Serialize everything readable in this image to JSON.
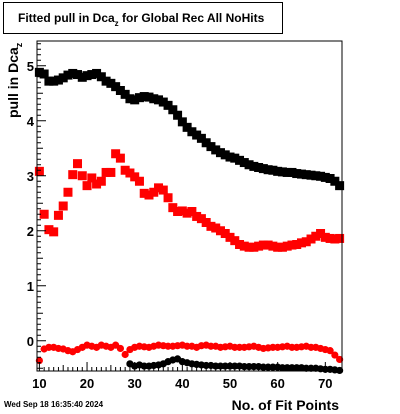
{
  "title": {
    "main": "Fitted pull in Dca",
    "sub": "z",
    "rest": " for Global Rec All NoHits"
  },
  "footer": {
    "date": "Wed Sep 18 16:35:40 2024"
  },
  "colors": {
    "black_series": "#000000",
    "red_series": "#ff0000"
  },
  "chart_data": {
    "type": "scatter",
    "xlabel": "No. of Fit Points",
    "ylabel": "pull in Dca",
    "ylabel_sub": "z",
    "xlim": [
      9.5,
      73.5
    ],
    "ylim": [
      -0.55,
      5.45
    ],
    "xticks": [
      10,
      20,
      30,
      40,
      50,
      60,
      70
    ],
    "yticks": [
      0,
      1,
      2,
      3,
      4,
      5
    ],
    "grid": false,
    "legend": "none",
    "series": [
      {
        "marker": "square",
        "color": "#000000",
        "x": [
          10,
          11,
          12,
          13,
          14,
          15,
          16,
          17,
          18,
          19,
          20,
          21,
          22,
          23,
          24,
          25,
          26,
          27,
          28,
          29,
          30,
          31,
          32,
          33,
          34,
          35,
          36,
          37,
          38,
          39,
          40,
          41,
          42,
          43,
          44,
          45,
          46,
          47,
          48,
          49,
          50,
          51,
          52,
          53,
          54,
          55,
          56,
          57,
          58,
          59,
          60,
          61,
          62,
          63,
          64,
          65,
          66,
          67,
          68,
          69,
          70,
          71,
          72,
          73
        ],
        "y": [
          4.88,
          4.85,
          4.72,
          4.72,
          4.74,
          4.78,
          4.83,
          4.86,
          4.84,
          4.79,
          4.82,
          4.84,
          4.86,
          4.8,
          4.72,
          4.68,
          4.62,
          4.55,
          4.48,
          4.4,
          4.38,
          4.42,
          4.44,
          4.43,
          4.4,
          4.38,
          4.34,
          4.28,
          4.2,
          4.1,
          3.98,
          3.88,
          3.8,
          3.74,
          3.68,
          3.6,
          3.53,
          3.47,
          3.42,
          3.38,
          3.34,
          3.32,
          3.28,
          3.24,
          3.2,
          3.17,
          3.15,
          3.13,
          3.11,
          3.1,
          3.08,
          3.07,
          3.06,
          3.06,
          3.04,
          3.03,
          3.02,
          3.01,
          3.0,
          2.99,
          2.97,
          2.95,
          2.9,
          2.82
        ]
      },
      {
        "marker": "square",
        "color": "#ff0000",
        "x": [
          10,
          11,
          12,
          13,
          14,
          15,
          16,
          17,
          18,
          19,
          20,
          21,
          22,
          23,
          24,
          25,
          26,
          27,
          28,
          29,
          30,
          31,
          32,
          33,
          34,
          35,
          36,
          37,
          38,
          39,
          40,
          41,
          42,
          43,
          44,
          45,
          46,
          47,
          48,
          49,
          50,
          51,
          52,
          53,
          54,
          55,
          56,
          57,
          58,
          59,
          60,
          61,
          62,
          63,
          64,
          65,
          66,
          67,
          68,
          69,
          70,
          71,
          72,
          73
        ],
        "y": [
          3.08,
          2.3,
          2.02,
          1.98,
          2.28,
          2.45,
          2.7,
          3.02,
          3.22,
          3.0,
          2.82,
          2.96,
          2.85,
          2.9,
          3.06,
          3.06,
          3.4,
          3.32,
          3.1,
          3.05,
          2.98,
          2.9,
          2.68,
          2.65,
          2.7,
          2.78,
          2.74,
          2.6,
          2.42,
          2.35,
          2.36,
          2.32,
          2.35,
          2.26,
          2.22,
          2.15,
          2.08,
          2.05,
          2.0,
          1.95,
          1.88,
          1.82,
          1.75,
          1.72,
          1.7,
          1.7,
          1.72,
          1.74,
          1.74,
          1.72,
          1.7,
          1.7,
          1.72,
          1.74,
          1.75,
          1.78,
          1.8,
          1.85,
          1.9,
          1.95,
          1.88,
          1.86,
          1.85,
          1.86
        ]
      },
      {
        "marker": "circle",
        "color": "#ff0000",
        "x": [
          10,
          11,
          12,
          13,
          14,
          15,
          16,
          17,
          18,
          19,
          20,
          21,
          22,
          23,
          24,
          25,
          26,
          27,
          28,
          29,
          30,
          31,
          32,
          33,
          34,
          35,
          36,
          37,
          38,
          39,
          40,
          41,
          42,
          43,
          44,
          45,
          46,
          47,
          48,
          49,
          50,
          51,
          52,
          53,
          54,
          55,
          56,
          57,
          58,
          59,
          60,
          61,
          62,
          63,
          64,
          65,
          66,
          67,
          68,
          69,
          70,
          71,
          72,
          73
        ],
        "y": [
          -0.36,
          -0.15,
          -0.12,
          -0.12,
          -0.14,
          -0.15,
          -0.18,
          -0.2,
          -0.16,
          -0.12,
          -0.08,
          -0.1,
          -0.12,
          -0.08,
          -0.1,
          -0.12,
          -0.08,
          -0.14,
          -0.25,
          -0.16,
          -0.12,
          -0.1,
          -0.11,
          -0.12,
          -0.1,
          -0.08,
          -0.09,
          -0.1,
          -0.1,
          -0.09,
          -0.08,
          -0.1,
          -0.1,
          -0.12,
          -0.09,
          -0.08,
          -0.1,
          -0.1,
          -0.12,
          -0.11,
          -0.1,
          -0.12,
          -0.12,
          -0.12,
          -0.11,
          -0.1,
          -0.12,
          -0.14,
          -0.13,
          -0.12,
          -0.12,
          -0.11,
          -0.1,
          -0.12,
          -0.12,
          -0.11,
          -0.1,
          -0.12,
          -0.12,
          -0.14,
          -0.16,
          -0.18,
          -0.26,
          -0.34
        ]
      },
      {
        "marker": "circle",
        "color": "#000000",
        "x": [
          29,
          30,
          31,
          32,
          33,
          34,
          35,
          36,
          37,
          38,
          39,
          40,
          41,
          42,
          43,
          44,
          45,
          46,
          47,
          48,
          49,
          50,
          51,
          52,
          53,
          54,
          55,
          56,
          57,
          58,
          59,
          60,
          61,
          62,
          63,
          64,
          65,
          66,
          67,
          68,
          69,
          70,
          71,
          72,
          73
        ],
        "y": [
          -0.42,
          -0.46,
          -0.44,
          -0.46,
          -0.46,
          -0.45,
          -0.44,
          -0.42,
          -0.38,
          -0.35,
          -0.33,
          -0.38,
          -0.4,
          -0.42,
          -0.43,
          -0.44,
          -0.45,
          -0.45,
          -0.46,
          -0.46,
          -0.46,
          -0.46,
          -0.46,
          -0.46,
          -0.47,
          -0.47,
          -0.47,
          -0.47,
          -0.48,
          -0.48,
          -0.48,
          -0.48,
          -0.49,
          -0.49,
          -0.49,
          -0.49,
          -0.49,
          -0.5,
          -0.5,
          -0.5,
          -0.51,
          -0.52,
          -0.52,
          -0.53,
          -0.54
        ]
      }
    ]
  }
}
